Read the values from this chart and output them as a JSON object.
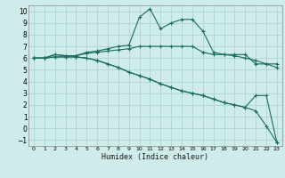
{
  "xlabel": "Humidex (Indice chaleur)",
  "background_color": "#ceecea",
  "grid_color": "#aed4d0",
  "line_color": "#1a6b60",
  "xlim": [
    -0.5,
    23.5
  ],
  "ylim": [
    -1.5,
    10.5
  ],
  "xticks": [
    0,
    1,
    2,
    3,
    4,
    5,
    6,
    7,
    8,
    9,
    10,
    11,
    12,
    13,
    14,
    15,
    16,
    17,
    18,
    19,
    20,
    21,
    22,
    23
  ],
  "yticks": [
    -1,
    0,
    1,
    2,
    3,
    4,
    5,
    6,
    7,
    8,
    9,
    10
  ],
  "lines": [
    {
      "x": [
        0,
        1,
        2,
        3,
        4,
        5,
        6,
        7,
        8,
        9,
        10,
        11,
        12,
        13,
        14,
        15,
        16,
        17,
        18,
        19,
        20,
        21,
        22,
        23
      ],
      "y": [
        6,
        6,
        6.3,
        6.2,
        6.2,
        6.5,
        6.6,
        6.8,
        7.0,
        7.1,
        9.5,
        10.2,
        8.5,
        9.0,
        9.3,
        9.3,
        8.3,
        6.5,
        6.3,
        6.3,
        6.3,
        5.5,
        5.5,
        5.2
      ]
    },
    {
      "x": [
        0,
        1,
        2,
        3,
        4,
        5,
        6,
        7,
        8,
        9,
        10,
        11,
        12,
        13,
        14,
        15,
        16,
        17,
        18,
        19,
        20,
        21,
        22,
        23
      ],
      "y": [
        6,
        6,
        6.3,
        6.2,
        6.2,
        6.4,
        6.5,
        6.6,
        6.7,
        6.8,
        7.0,
        7.0,
        7.0,
        7.0,
        7.0,
        7.0,
        6.5,
        6.3,
        6.3,
        6.2,
        6.0,
        5.8,
        5.5,
        5.5
      ]
    },
    {
      "x": [
        0,
        1,
        2,
        3,
        4,
        5,
        6,
        7,
        8,
        9,
        10,
        11,
        12,
        13,
        14,
        15,
        16,
        17,
        18,
        19,
        20,
        21,
        22,
        23
      ],
      "y": [
        6,
        6,
        6.1,
        6.1,
        6.1,
        6.0,
        5.8,
        5.5,
        5.2,
        4.8,
        4.5,
        4.2,
        3.8,
        3.5,
        3.2,
        3.0,
        2.8,
        2.5,
        2.2,
        2.0,
        1.8,
        2.8,
        2.8,
        -1.2
      ]
    },
    {
      "x": [
        0,
        1,
        2,
        3,
        4,
        5,
        6,
        7,
        8,
        9,
        10,
        11,
        12,
        13,
        14,
        15,
        16,
        17,
        18,
        19,
        20,
        21,
        22,
        23
      ],
      "y": [
        6,
        6,
        6.1,
        6.1,
        6.1,
        6.0,
        5.8,
        5.5,
        5.2,
        4.8,
        4.5,
        4.2,
        3.8,
        3.5,
        3.2,
        3.0,
        2.8,
        2.5,
        2.2,
        2.0,
        1.8,
        1.5,
        0.2,
        -1.2
      ]
    }
  ]
}
